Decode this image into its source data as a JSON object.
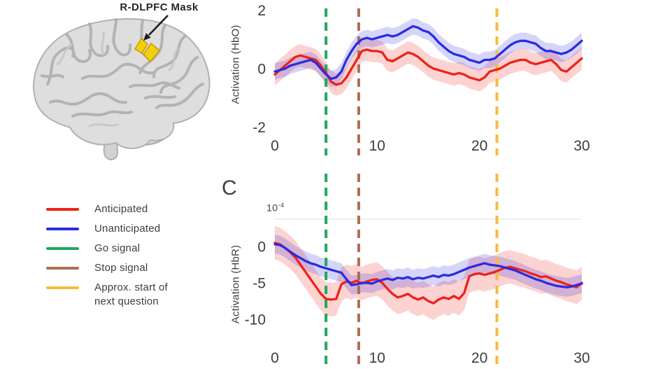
{
  "figure": {
    "brain": {
      "label": "R-DLPFC Mask",
      "mask_color": "#f2cf0e",
      "brain_fill": "#dedede",
      "brain_stroke": "#b0b0b0"
    },
    "legend": {
      "items": [
        {
          "label": "Anticipated",
          "color": "#ee2218"
        },
        {
          "label": "Unanticipated",
          "color": "#2b2be2"
        },
        {
          "label": "Go signal",
          "color": "#21a85c"
        },
        {
          "label": "Stop signal",
          "color": "#ad6f50"
        },
        {
          "label": "Approx. start of\nnext question",
          "color": "#f8bb3c"
        }
      ]
    }
  },
  "chart_data": [
    {
      "type": "line",
      "id": "hbo",
      "ylabel": "Activation (HbO)",
      "xlabel": "",
      "xlim": [
        0,
        30
      ],
      "ylim": [
        -2,
        2
      ],
      "xticks": [
        0,
        10,
        20,
        30
      ],
      "yticks": [
        2,
        0,
        -2
      ],
      "grid": false,
      "legend_position": "outside-left",
      "x_start": 0,
      "x_step": 0.5,
      "vlines": [
        {
          "label": "Go signal",
          "x": 5,
          "color": "#21a85c"
        },
        {
          "label": "Stop signal",
          "x": 8.2,
          "color": "#ad6f50"
        },
        {
          "label": "Approx. start of next question",
          "x": 21.7,
          "color": "#f8bb3c"
        }
      ],
      "series": [
        {
          "name": "Anticipated",
          "color": "#ee2218",
          "band_halfwidth": 0.38,
          "values": [
            -0.2,
            -0.05,
            0.1,
            0.25,
            0.4,
            0.45,
            0.4,
            0.35,
            0.3,
            0.1,
            -0.15,
            -0.45,
            -0.55,
            -0.5,
            -0.3,
            0,
            0.3,
            0.6,
            0.65,
            0.6,
            0.6,
            0.55,
            0.3,
            0.25,
            0.35,
            0.45,
            0.55,
            0.5,
            0.4,
            0.25,
            0.1,
            0,
            -0.05,
            -0.1,
            -0.15,
            -0.2,
            -0.15,
            -0.2,
            -0.3,
            -0.35,
            -0.4,
            -0.3,
            -0.1,
            -0.05,
            0,
            0.1,
            0.2,
            0.25,
            0.3,
            0.3,
            0.2,
            0.15,
            0.2,
            0.25,
            0.3,
            0.15,
            -0.05,
            -0.1,
            0.05,
            0.2,
            0.35
          ]
        },
        {
          "name": "Unanticipated",
          "color": "#2b2be2",
          "band_halfwidth": 0.28,
          "values": [
            -0.1,
            -0.05,
            0,
            0.1,
            0.15,
            0.2,
            0.25,
            0.3,
            0.2,
            0,
            -0.2,
            -0.35,
            -0.3,
            -0.1,
            0.3,
            0.6,
            0.85,
            1,
            1.05,
            1,
            1.05,
            1.1,
            1.15,
            1.1,
            1.15,
            1.25,
            1.35,
            1.45,
            1.4,
            1.3,
            1.25,
            1.1,
            0.9,
            0.75,
            0.6,
            0.5,
            0.45,
            0.4,
            0.3,
            0.25,
            0.2,
            0.3,
            0.3,
            0.35,
            0.5,
            0.65,
            0.8,
            0.9,
            0.95,
            0.95,
            0.9,
            0.85,
            0.7,
            0.6,
            0.6,
            0.55,
            0.5,
            0.55,
            0.65,
            0.8,
            0.95
          ]
        }
      ]
    },
    {
      "type": "line",
      "id": "hbr",
      "panel_label": "C",
      "scale_label": {
        "base": "10",
        "exp": "-4"
      },
      "ylabel": "Activation (HbR)",
      "xlabel": "",
      "xlim": [
        0,
        30
      ],
      "ylim": [
        -12,
        3
      ],
      "xticks": [
        0,
        10,
        20,
        30
      ],
      "yticks": [
        0,
        -5,
        -10
      ],
      "grid": false,
      "x_start": 0,
      "x_step": 0.5,
      "vlines": [
        {
          "label": "Go signal",
          "x": 5,
          "color": "#21a85c"
        },
        {
          "label": "Stop signal",
          "x": 8.2,
          "color": "#ad6f50"
        },
        {
          "label": "Approx. start of next question",
          "x": 21.7,
          "color": "#f8bb3c"
        }
      ],
      "series": [
        {
          "name": "Anticipated",
          "color": "#ee2218",
          "band_halfwidth": 2.3,
          "values": [
            0.5,
            0.3,
            -0.2,
            -0.8,
            -1.5,
            -2.5,
            -3.5,
            -4.5,
            -5.5,
            -6.5,
            -7.2,
            -7.3,
            -7.2,
            -5.2,
            -4.8,
            -5,
            -4.7,
            -5.1,
            -4.8,
            -4.6,
            -4.5,
            -5,
            -5.8,
            -6.5,
            -7,
            -6.8,
            -6.5,
            -7,
            -7.3,
            -7,
            -7.5,
            -7.8,
            -7.3,
            -7,
            -7.2,
            -6.8,
            -7.2,
            -6.4,
            -4.1,
            -3.8,
            -3.7,
            -3.9,
            -3.7,
            -3.5,
            -3.2,
            -2.9,
            -2.8,
            -3,
            -3.2,
            -3.4,
            -3.7,
            -3.9,
            -4.2,
            -4.1,
            -4.4,
            -4.7,
            -4.9,
            -5.2,
            -5.4,
            -5.6,
            -5
          ]
        },
        {
          "name": "Unanticipated",
          "color": "#2b2be2",
          "band_halfwidth": 1.3,
          "values": [
            0.3,
            0.2,
            -0.2,
            -0.7,
            -1.2,
            -1.6,
            -2,
            -2.3,
            -2.5,
            -2.8,
            -3,
            -3.2,
            -3.4,
            -3.6,
            -4.5,
            -5.3,
            -5.2,
            -5,
            -5,
            -5.1,
            -4.8,
            -4.6,
            -4.4,
            -4.6,
            -4.3,
            -4.4,
            -4.2,
            -4.5,
            -4.3,
            -4.4,
            -4.2,
            -4,
            -4.2,
            -3.9,
            -4,
            -3.8,
            -3.5,
            -3.2,
            -2.9,
            -2.7,
            -2.5,
            -2.3,
            -2.5,
            -2.6,
            -2.7,
            -2.9,
            -3.1,
            -3.3,
            -3.6,
            -3.9,
            -4.2,
            -4.5,
            -4.7,
            -5,
            -5.2,
            -5.4,
            -5.5,
            -5.6,
            -5.5,
            -5.3,
            -5.1
          ]
        }
      ]
    }
  ]
}
